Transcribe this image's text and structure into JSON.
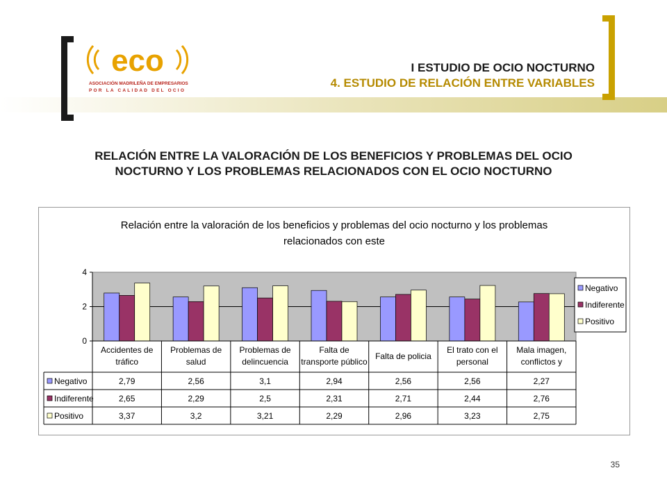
{
  "header": {
    "line1": "I ESTUDIO DE OCIO NOCTURNO",
    "line2": "4. ESTUDIO DE RELACIÓN ENTRE VARIABLES",
    "logo_text": "eco",
    "logo_sub1": "ASOCIACIÓN MADRILEÑA DE EMPRESARIOS",
    "logo_sub2": "POR LA CALIDAD DEL OCIO"
  },
  "page_title_1": "RELACIÓN ENTRE LA VALORACIÓN DE LOS BENEFICIOS Y PROBLEMAS DEL OCIO",
  "page_title_2": "NOCTURNO Y LOS PROBLEMAS RELACIONADOS CON EL OCIO NOCTURNO",
  "page_number": "35",
  "colors": {
    "gold": "#c9a100",
    "negativo": "#9999ff",
    "indiferente": "#993366",
    "positivo": "#ffffcc",
    "plot_bg": "#c0c0c0"
  },
  "chart_data": {
    "type": "bar",
    "title": "Relación entre la valoración de los beneficios y problemas del ocio nocturno y los problemas relacionados con este",
    "title_line1": "Relación entre la valoración de los beneficios y problemas del ocio nocturno y los problemas",
    "title_line2": "relacionados con este",
    "categories": [
      [
        "Accidentes de",
        "tráfico"
      ],
      [
        "Problemas de",
        "salud"
      ],
      [
        "Problemas de",
        "delincuencia"
      ],
      [
        "Falta de",
        "transporte público"
      ],
      [
        "Falta de policia"
      ],
      [
        "El trato con el",
        "personal"
      ],
      [
        "Mala imagen,",
        "conflictos y"
      ]
    ],
    "ylim": [
      0,
      4
    ],
    "yticks": [
      "0",
      "2",
      "4"
    ],
    "legend_position": "right",
    "grid": true,
    "series": [
      {
        "name": "Negativo",
        "values": [
          2.79,
          2.56,
          3.1,
          2.94,
          2.56,
          2.56,
          2.27
        ],
        "labels": [
          "2,79",
          "2,56",
          "3,1",
          "2,94",
          "2,56",
          "2,56",
          "2,27"
        ]
      },
      {
        "name": "Indiferente",
        "values": [
          2.65,
          2.29,
          2.5,
          2.31,
          2.71,
          2.44,
          2.76
        ],
        "labels": [
          "2,65",
          "2,29",
          "2,5",
          "2,31",
          "2,71",
          "2,44",
          "2,76"
        ]
      },
      {
        "name": "Positivo",
        "values": [
          3.37,
          3.2,
          3.21,
          2.29,
          2.96,
          3.23,
          2.75
        ],
        "labels": [
          "3,37",
          "3,2",
          "3,21",
          "2,29",
          "2,96",
          "3,23",
          "2,75"
        ]
      }
    ]
  }
}
